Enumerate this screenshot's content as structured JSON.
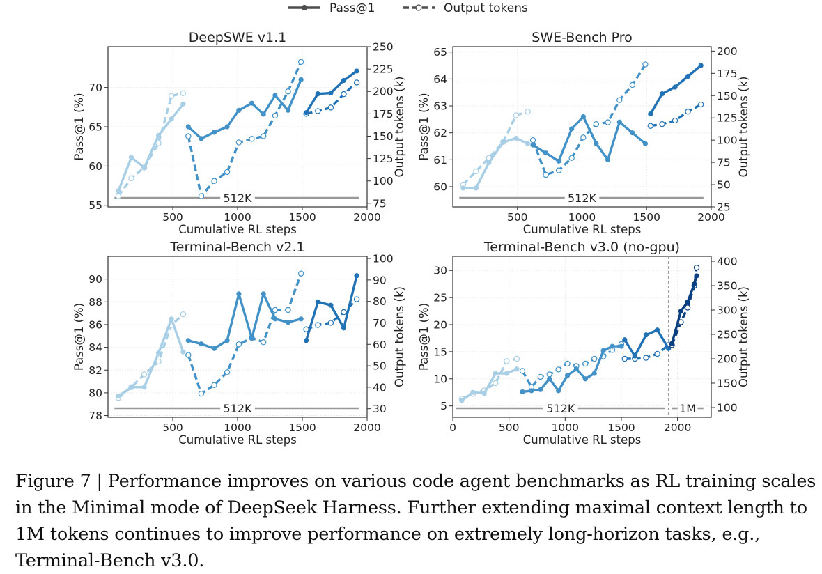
{
  "legend": {
    "pass_label": "Pass@1",
    "tokens_label": "Output tokens"
  },
  "caption": "Figure 7 | Performance improves on various code agent benchmarks as RL training scales in the Minimal mode of DeepSeek Harness. Further extending maximal context length to 1M tokens continues to improve performance on extremely long-horizon tasks, e.g., Terminal-Bench v3.0.",
  "colors": {
    "stage1": "#a8cfe6",
    "stage2": "#4291c7",
    "stage3": "#2171b5",
    "stage4": "#0b3f7f",
    "context_line": "#999999"
  },
  "chart_data": [
    {
      "type": "line",
      "title": "DeepSWE v1.1",
      "xlabel": "Cumulative RL steps",
      "ylabel": "Pass@1 (%)",
      "y2label": "Output tokens (k)",
      "xlim": [
        0,
        2000
      ],
      "ylim": [
        54.8,
        75.2
      ],
      "y2lim": [
        71,
        250
      ],
      "xticks": [
        500,
        1000,
        1500,
        2000
      ],
      "yticks": [
        55,
        60,
        65,
        70
      ],
      "y2ticks": [
        75,
        100,
        125,
        150,
        175,
        200,
        225,
        250
      ],
      "context_markers": [
        {
          "label": "512K",
          "from": 50,
          "to": 1940,
          "label_x": 1000
        }
      ],
      "stages": [
        {
          "stage": 1,
          "pass": {
            "x": [
              80,
              180,
              280,
              390,
              490,
              580
            ],
            "y": [
              56.8,
              61.1,
              59.8,
              63.9,
              66.0,
              67.9
            ]
          },
          "tokens": {
            "x": [
              80,
              180,
              280,
              390,
              490,
              580
            ],
            "y": [
              83,
              103,
              115,
              142,
              195,
              198
            ]
          }
        },
        {
          "stage": 2,
          "pass": {
            "x": [
              620,
              720,
              820,
              920,
              1010,
              1110,
              1200,
              1290,
              1390,
              1490
            ],
            "y": [
              65.0,
              63.5,
              64.3,
              65.0,
              67.1,
              68.0,
              66.6,
              69.0,
              67.1,
              71.0
            ]
          },
          "tokens": {
            "x": [
              620,
              720,
              820,
              920,
              1010,
              1110,
              1200,
              1290,
              1390,
              1490
            ],
            "y": [
              150,
              83,
              100,
              110,
              143,
              147,
              150,
              173,
              200,
              233
            ]
          }
        },
        {
          "stage": 3,
          "pass": {
            "x": [
              1530,
              1620,
              1720,
              1820,
              1920
            ],
            "y": [
              66.8,
              69.2,
              69.3,
              70.9,
              72.1
            ]
          },
          "tokens": {
            "x": [
              1530,
              1620,
              1720,
              1820,
              1920
            ],
            "y": [
              175,
              178,
              182,
              197,
              210
            ]
          }
        }
      ]
    },
    {
      "type": "line",
      "title": "SWE-Bench Pro",
      "xlabel": "Cumulative RL steps",
      "ylabel": "Pass@1 (%)",
      "y2label": "Output tokens (k)",
      "xlim": [
        0,
        2000
      ],
      "ylim": [
        59.25,
        65.2
      ],
      "y2lim": [
        25,
        205
      ],
      "xticks": [
        500,
        1000,
        1500,
        2000
      ],
      "yticks": [
        60,
        61,
        62,
        63,
        64,
        65
      ],
      "y2ticks": [
        25,
        50,
        75,
        100,
        125,
        150,
        175,
        200
      ],
      "context_markers": [
        {
          "label": "512K",
          "from": 50,
          "to": 1940,
          "label_x": 1000
        }
      ],
      "stages": [
        {
          "stage": 1,
          "pass": {
            "x": [
              80,
              180,
              280,
              390,
              490,
              580
            ],
            "y": [
              59.95,
              59.95,
              60.9,
              61.65,
              61.8,
              61.6
            ]
          },
          "tokens": {
            "x": [
              80,
              180,
              280,
              390,
              490,
              580
            ],
            "y": [
              50,
              65,
              80,
              98,
              128,
              132
            ]
          }
        },
        {
          "stage": 2,
          "pass": {
            "x": [
              620,
              720,
              820,
              920,
              1010,
              1110,
              1200,
              1290,
              1390,
              1490
            ],
            "y": [
              61.55,
              61.25,
              60.95,
              62.15,
              62.6,
              61.6,
              61.0,
              62.4,
              62.0,
              61.6
            ]
          },
          "tokens": {
            "x": [
              620,
              720,
              820,
              920,
              1010,
              1110,
              1200,
              1290,
              1390,
              1490
            ],
            "y": [
              100,
              61,
              66,
              80,
              103,
              118,
              120,
              145,
              162,
              185
            ]
          }
        },
        {
          "stage": 3,
          "pass": {
            "x": [
              1530,
              1620,
              1720,
              1820,
              1920
            ],
            "y": [
              62.7,
              63.45,
              63.7,
              64.1,
              64.5
            ]
          },
          "tokens": {
            "x": [
              1530,
              1620,
              1720,
              1820,
              1920
            ],
            "y": [
              116,
              118,
              122,
              132,
              140
            ]
          }
        }
      ]
    },
    {
      "type": "line",
      "title": "Terminal-Bench v2.1",
      "xlabel": "Cumulative RL steps",
      "ylabel": "Pass@1 (%)",
      "y2label": "Output tokens (k)",
      "xlim": [
        0,
        2000
      ],
      "ylim": [
        77.85,
        92.0
      ],
      "y2lim": [
        26,
        101
      ],
      "xticks": [
        500,
        1000,
        1500,
        2000
      ],
      "yticks": [
        78,
        80,
        82,
        84,
        86,
        88,
        90
      ],
      "y2ticks": [
        30,
        40,
        50,
        60,
        70,
        80,
        90,
        100
      ],
      "context_markers": [
        {
          "label": "512K",
          "from": 50,
          "to": 1940,
          "label_x": 1000
        }
      ],
      "stages": [
        {
          "stage": 1,
          "pass": {
            "x": [
              80,
              180,
              280,
              390,
              490,
              580
            ],
            "y": [
              79.7,
              80.5,
              80.5,
              83.5,
              86.5,
              83.6
            ]
          },
          "tokens": {
            "x": [
              80,
              180,
              280,
              390,
              490,
              580
            ],
            "y": [
              35,
              40,
              46,
              52,
              69,
              74
            ]
          }
        },
        {
          "stage": 2,
          "pass": {
            "x": [
              620,
              720,
              820,
              920,
              1010,
              1110,
              1200,
              1290,
              1390,
              1490
            ],
            "y": [
              84.6,
              84.3,
              83.9,
              84.6,
              88.7,
              84.8,
              88.7,
              86.5,
              86.2,
              86.5
            ]
          },
          "tokens": {
            "x": [
              620,
              720,
              820,
              920,
              1010,
              1110,
              1200,
              1290,
              1390,
              1490
            ],
            "y": [
              55,
              37,
              41,
              47,
              60,
              63,
              61,
              76,
              76,
              93
            ]
          }
        },
        {
          "stage": 3,
          "pass": {
            "x": [
              1530,
              1620,
              1720,
              1820,
              1920
            ],
            "y": [
              84.6,
              88.0,
              87.7,
              85.7,
              90.3
            ]
          },
          "tokens": {
            "x": [
              1530,
              1620,
              1720,
              1820,
              1920
            ],
            "y": [
              67,
              69,
              70,
              75,
              81
            ]
          }
        }
      ]
    },
    {
      "type": "line",
      "title": "Terminal-Bench v3.0 (no-gpu)",
      "xlabel": "Cumulative RL steps",
      "ylabel": "Pass@1 (%)",
      "y2label": "Output tokens (k)",
      "xlim": [
        0,
        2300
      ],
      "ylim": [
        2.9,
        32.6
      ],
      "y2lim": [
        80,
        410
      ],
      "xticks": [
        0,
        500,
        1000,
        1500,
        2000
      ],
      "yticks": [
        5,
        10,
        15,
        20,
        25,
        30
      ],
      "y2ticks": [
        100,
        150,
        200,
        250,
        300,
        350,
        400
      ],
      "vline_x": 1920,
      "context_markers": [
        {
          "label": "512K",
          "from": 30,
          "to": 1890,
          "label_x": 960
        },
        {
          "label": "1M",
          "from": 1950,
          "to": 2230,
          "label_x": 2090
        }
      ],
      "stages": [
        {
          "stage": 1,
          "pass": {
            "x": [
              80,
              180,
              280,
              380,
              480,
              570
            ],
            "y": [
              6.0,
              7.5,
              7.3,
              11.0,
              11.0,
              11.8
            ]
          },
          "tokens": {
            "x": [
              80,
              180,
              280,
              380,
              480,
              570
            ],
            "y": [
              118,
              128,
              135,
              150,
              195,
              200
            ]
          }
        },
        {
          "stage": 2,
          "pass": {
            "x": [
              620,
              700,
              780,
              860,
              940,
              1020,
              1100,
              1180,
              1260,
              1340,
              1420,
              1500
            ],
            "y": [
              7.6,
              7.8,
              8.0,
              10.0,
              7.8,
              10.6,
              11.8,
              10.0,
              11.0,
              15.2,
              16.0,
              16.0
            ]
          },
          "tokens": {
            "x": [
              620,
              700,
              780,
              860,
              940,
              1020,
              1100,
              1180,
              1260,
              1340,
              1420,
              1500
            ],
            "y": [
              175,
              142,
              163,
              168,
              178,
              190,
              185,
              190,
              200,
              205,
              218,
              230
            ]
          }
        },
        {
          "stage": 3,
          "pass": {
            "x": [
              1530,
              1620,
              1720,
              1820,
              1920
            ],
            "y": [
              17.2,
              14.2,
              18.1,
              19.0,
              15.6
            ]
          },
          "tokens": {
            "x": [
              1530,
              1620,
              1720,
              1820,
              1920
            ],
            "y": [
              200,
              200,
              202,
              210,
              228
            ]
          }
        },
        {
          "stage": 4,
          "pass": {
            "x": [
              1950,
              2030,
              2090,
              2150,
              2170
            ],
            "y": [
              16.5,
              22.5,
              24.2,
              27.5,
              29.0
            ]
          },
          "tokens": {
            "x": [
              1950,
              2030,
              2090,
              2150,
              2170
            ],
            "y": [
              228,
              275,
              305,
              350,
              387
            ]
          }
        }
      ]
    }
  ]
}
